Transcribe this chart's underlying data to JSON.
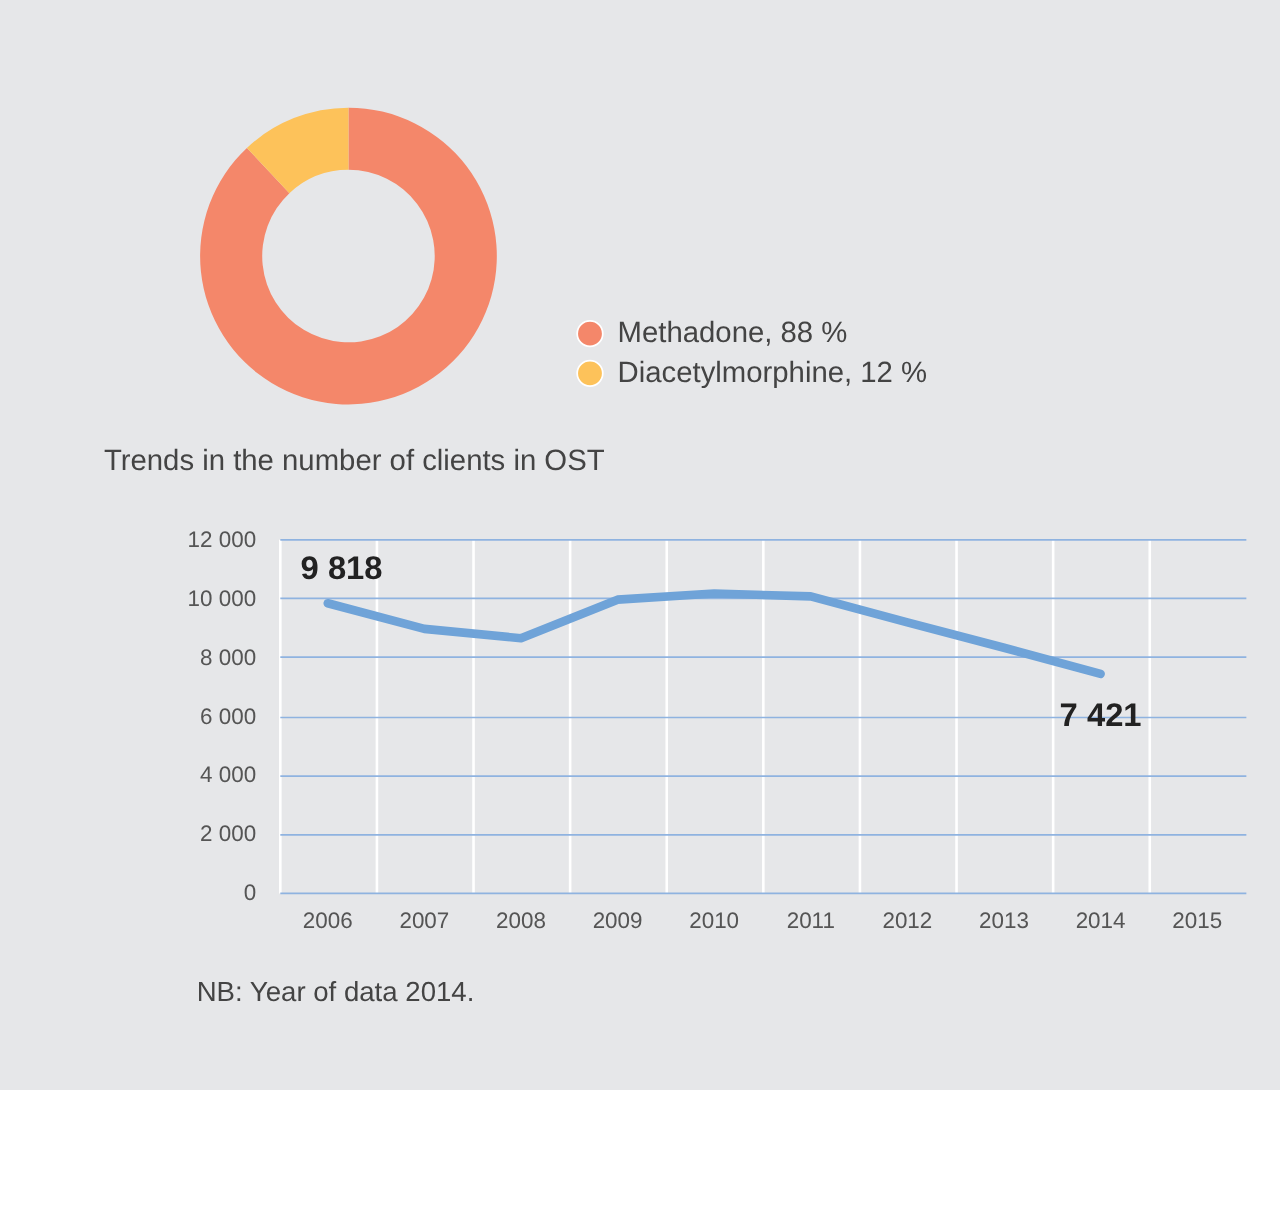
{
  "chart_data": [
    {
      "type": "donut",
      "categories": [
        "Methadone",
        "Diacetylmorphine"
      ],
      "values": [
        88,
        12
      ],
      "value_labels": [
        "88 %",
        "12 %"
      ],
      "colors": [
        "#f4876a",
        "#fdc25a"
      ],
      "legend": "right"
    },
    {
      "type": "line",
      "title": "Trends in the number of clients in OST",
      "categories": [
        "2006",
        "2007",
        "2008",
        "2009",
        "2010",
        "2011",
        "2012",
        "2013",
        "2014",
        "2015"
      ],
      "series": [
        {
          "color": "#6fa3d8",
          "values": [
            9818,
            8950,
            8630,
            9940,
            10150,
            10050,
            9170,
            8310,
            7421,
            null
          ]
        }
      ],
      "value_labels": [
        "9 818",
        null,
        null,
        null,
        null,
        null,
        null,
        null,
        "7 421",
        null
      ],
      "ylim": [
        0,
        12000
      ],
      "yticks": [
        {
          "value": 0,
          "label": "0"
        },
        {
          "value": 2000,
          "label": "2 000"
        },
        {
          "value": 4000,
          "label": "4 000"
        },
        {
          "value": 6000,
          "label": "6 000"
        },
        {
          "value": 8000,
          "label": "8 000"
        },
        {
          "value": 10000,
          "label": "10 000"
        },
        {
          "value": 12000,
          "label": "12 000"
        }
      ],
      "grid": true,
      "marker": "none",
      "line_style": "solid",
      "annotations": [
        "NB: Year of data 2014."
      ]
    }
  ]
}
